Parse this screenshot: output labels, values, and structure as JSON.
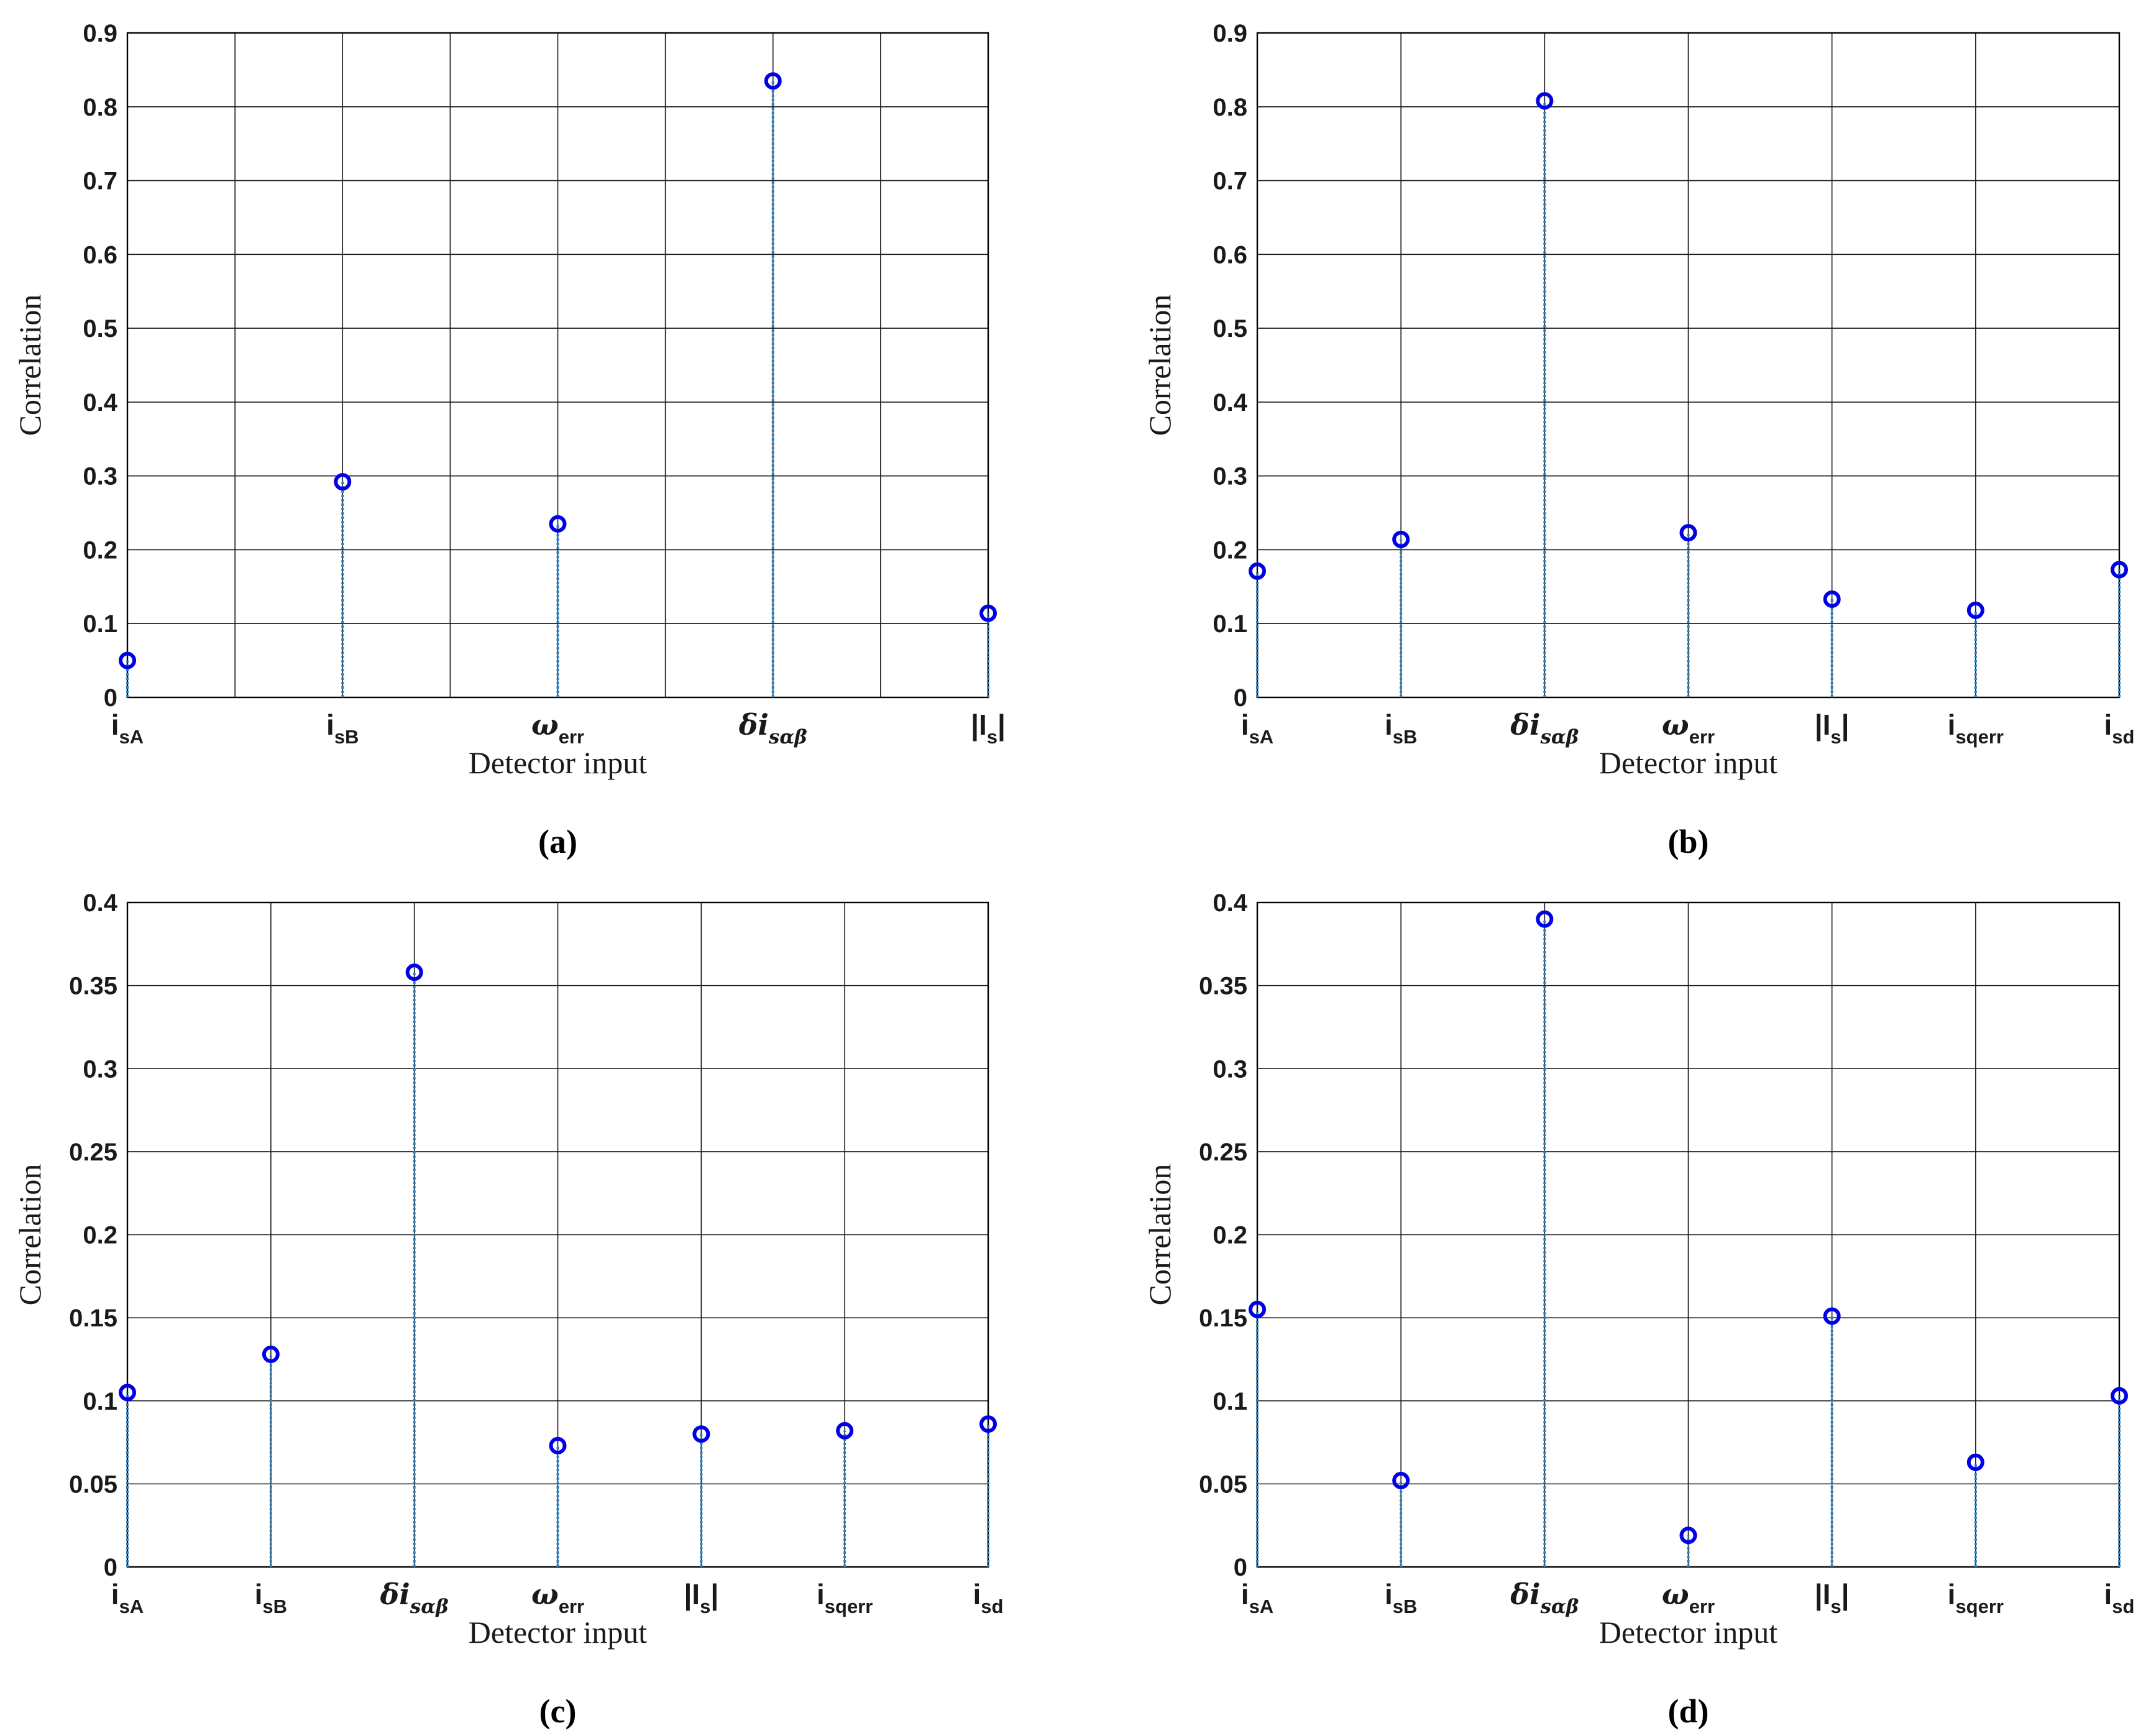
{
  "chart_data": [
    {
      "type": "stem",
      "panel_label": "(a)",
      "xlabel": "Detector input",
      "ylabel": "Correlation",
      "ylim": [
        0,
        0.9
      ],
      "yticks": [
        "0",
        "0.1",
        "0.2",
        "0.3",
        "0.4",
        "0.5",
        "0.6",
        "0.7",
        "0.8",
        "0.9"
      ],
      "grid": true,
      "categories": [
        {
          "base": "i",
          "sub": "sA"
        },
        {
          "base": "",
          "sub": ""
        },
        {
          "base": "i",
          "sub": "sB"
        },
        {
          "base": "",
          "sub": ""
        },
        {
          "base": "ω",
          "sub": "err"
        },
        {
          "base": "",
          "sub": ""
        },
        {
          "base": "δi",
          "sub": "sαβ"
        },
        {
          "base": "",
          "sub": ""
        },
        {
          "base": "|I",
          "sub": "s",
          "suffix": "|"
        }
      ],
      "values": [
        0.05,
        null,
        0.292,
        null,
        0.235,
        null,
        0.835,
        null,
        0.114
      ]
    },
    {
      "type": "stem",
      "panel_label": "(b)",
      "xlabel": "Detector input",
      "ylabel": "Correlation",
      "ylim": [
        0,
        0.9
      ],
      "yticks": [
        "0",
        "0.1",
        "0.2",
        "0.3",
        "0.4",
        "0.5",
        "0.6",
        "0.7",
        "0.8",
        "0.9"
      ],
      "grid": true,
      "categories": [
        {
          "base": "i",
          "sub": "sA"
        },
        {
          "base": "i",
          "sub": "sB"
        },
        {
          "base": "δi",
          "sub": "sαβ"
        },
        {
          "base": "ω",
          "sub": "err"
        },
        {
          "base": "|I",
          "sub": "s",
          "suffix": "|"
        },
        {
          "base": "i",
          "sub": "sqerr"
        },
        {
          "base": "i",
          "sub": "sd"
        }
      ],
      "values": [
        0.171,
        0.214,
        0.808,
        0.223,
        0.133,
        0.118,
        0.173
      ]
    },
    {
      "type": "stem",
      "panel_label": "(c)",
      "xlabel": "Detector input",
      "ylabel": "Correlation",
      "ylim": [
        0,
        0.4
      ],
      "yticks": [
        "0",
        "0.05",
        "0.1",
        "0.15",
        "0.2",
        "0.25",
        "0.3",
        "0.35",
        "0.4"
      ],
      "grid": true,
      "categories": [
        {
          "base": "i",
          "sub": "sA"
        },
        {
          "base": "i",
          "sub": "sB"
        },
        {
          "base": "δi",
          "sub": "sαβ"
        },
        {
          "base": "ω",
          "sub": "err"
        },
        {
          "base": "|I",
          "sub": "s",
          "suffix": "|"
        },
        {
          "base": "i",
          "sub": "sqerr"
        },
        {
          "base": "i",
          "sub": "sd"
        }
      ],
      "values": [
        0.105,
        0.128,
        0.358,
        0.073,
        0.08,
        0.082,
        0.086
      ]
    },
    {
      "type": "stem",
      "panel_label": "(d)",
      "xlabel": "Detector input",
      "ylabel": "Correlation",
      "ylim": [
        0,
        0.4
      ],
      "yticks": [
        "0",
        "0.05",
        "0.1",
        "0.15",
        "0.2",
        "0.25",
        "0.3",
        "0.35",
        "0.4"
      ],
      "grid": true,
      "categories": [
        {
          "base": "i",
          "sub": "sA"
        },
        {
          "base": "i",
          "sub": "sB"
        },
        {
          "base": "δi",
          "sub": "sαβ"
        },
        {
          "base": "ω",
          "sub": "err"
        },
        {
          "base": "|I",
          "sub": "s",
          "suffix": "|"
        },
        {
          "base": "i",
          "sub": "sqerr"
        },
        {
          "base": "i",
          "sub": "sd"
        }
      ],
      "values": [
        0.155,
        0.052,
        0.39,
        0.019,
        0.151,
        0.063,
        0.103
      ]
    }
  ],
  "colors": {
    "marker": "#0000e6",
    "stem": "#2a7fbf",
    "grid": "#1a1a1a"
  }
}
